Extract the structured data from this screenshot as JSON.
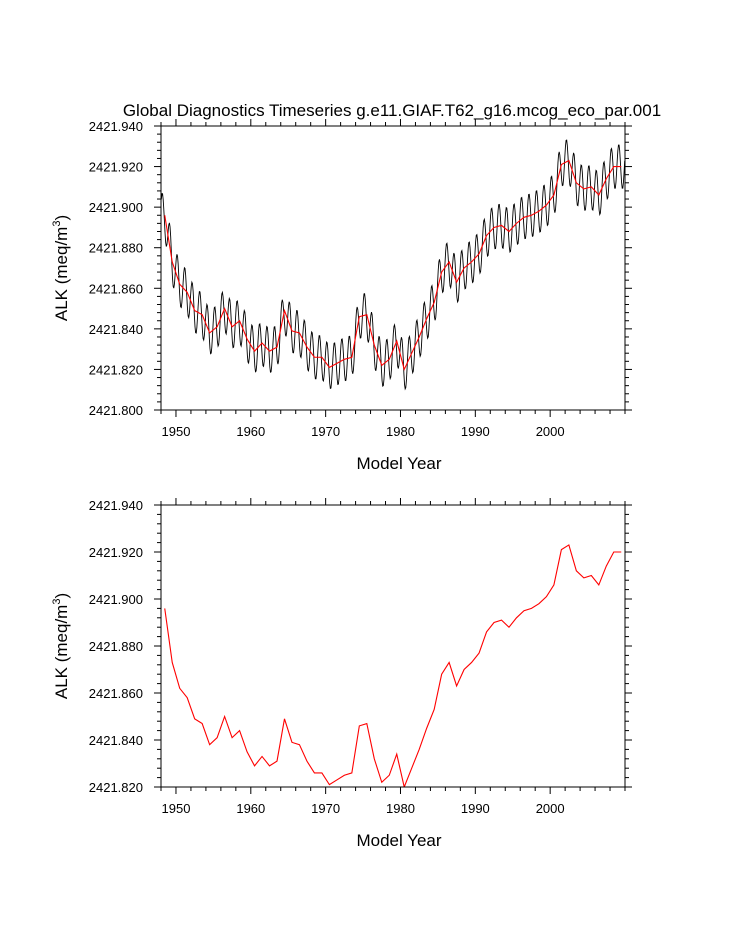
{
  "page_title": "Global Diagnostics Timeseries g.e11.GIAF.T62_g16.mcog_eco_par.001",
  "colors": {
    "monthly": "#000000",
    "annual": "#ff0000",
    "axis": "#000000"
  },
  "chart_data": [
    {
      "type": "line",
      "name": "top",
      "title": "Global Diagnostics Timeseries g.e11.GIAF.T62_g16.mcog_eco_par.001",
      "xlabel": "Model Year",
      "ylabel": "ALK (meq/m",
      "ylabel_sup": "3",
      "ylabel_end": ")",
      "xlim": [
        1948,
        2010
      ],
      "ylim": [
        2421.8,
        2421.94
      ],
      "xticks": [
        1950,
        1960,
        1970,
        1980,
        1990,
        2000
      ],
      "yticks": [
        "2421.800",
        "2421.820",
        "2421.840",
        "2421.860",
        "2421.880",
        "2421.900",
        "2421.920",
        "2421.940"
      ],
      "series": [
        {
          "name": "monthly",
          "color": "#000000",
          "annual_base": [
            2421.896,
            2421.873,
            2421.862,
            2421.858,
            2421.849,
            2421.847,
            2421.838,
            2421.841,
            2421.85,
            2421.841,
            2421.844,
            2421.835,
            2421.829,
            2421.833,
            2421.829,
            2421.831,
            2421.849,
            2421.839,
            2421.838,
            2421.831,
            2421.826,
            2421.826,
            2421.821,
            2421.823,
            2421.825,
            2421.826,
            2421.846,
            2421.847,
            2421.832,
            2421.822,
            2421.825,
            2421.834,
            2421.82,
            2421.828,
            2421.836,
            2421.845,
            2421.853,
            2421.868,
            2421.873,
            2421.863,
            2421.87,
            2421.873,
            2421.877,
            2421.886,
            2421.89,
            2421.891,
            2421.888,
            2421.892,
            2421.895,
            2421.896,
            2421.898,
            2421.901,
            2421.906,
            2421.921,
            2421.923,
            2421.912,
            2421.909,
            2421.91,
            2421.906,
            2421.914,
            2421.92,
            2421.92
          ],
          "seasonal_amplitude": 0.011
        },
        {
          "name": "annual",
          "color": "#ff0000",
          "x": [
            1948.5,
            1949.5,
            1950.5,
            1951.5,
            1952.5,
            1953.5,
            1954.5,
            1955.5,
            1956.5,
            1957.5,
            1958.5,
            1959.5,
            1960.5,
            1961.5,
            1962.5,
            1963.5,
            1964.5,
            1965.5,
            1966.5,
            1967.5,
            1968.5,
            1969.5,
            1970.5,
            1971.5,
            1972.5,
            1973.5,
            1974.5,
            1975.5,
            1976.5,
            1977.5,
            1978.5,
            1979.5,
            1980.5,
            1981.5,
            1982.5,
            1983.5,
            1984.5,
            1985.5,
            1986.5,
            1987.5,
            1988.5,
            1989.5,
            1990.5,
            1991.5,
            1992.5,
            1993.5,
            1994.5,
            1995.5,
            1996.5,
            1997.5,
            1998.5,
            1999.5,
            2000.5,
            2001.5,
            2002.5,
            2003.5,
            2004.5,
            2005.5,
            2006.5,
            2007.5,
            2008.5,
            2009.5
          ],
          "values": [
            2421.896,
            2421.873,
            2421.862,
            2421.858,
            2421.849,
            2421.847,
            2421.838,
            2421.841,
            2421.85,
            2421.841,
            2421.844,
            2421.835,
            2421.829,
            2421.833,
            2421.829,
            2421.831,
            2421.849,
            2421.839,
            2421.838,
            2421.831,
            2421.826,
            2421.826,
            2421.821,
            2421.823,
            2421.825,
            2421.826,
            2421.846,
            2421.847,
            2421.832,
            2421.822,
            2421.825,
            2421.834,
            2421.82,
            2421.828,
            2421.836,
            2421.845,
            2421.853,
            2421.868,
            2421.873,
            2421.863,
            2421.87,
            2421.873,
            2421.877,
            2421.886,
            2421.89,
            2421.891,
            2421.888,
            2421.892,
            2421.895,
            2421.896,
            2421.898,
            2421.901,
            2421.906,
            2421.921,
            2421.923,
            2421.912,
            2421.909,
            2421.91,
            2421.906,
            2421.914,
            2421.92,
            2421.92
          ]
        }
      ]
    },
    {
      "type": "line",
      "name": "bottom",
      "title": "",
      "xlabel": "Model Year",
      "ylabel": "ALK (meq/m",
      "ylabel_sup": "3",
      "ylabel_end": ")",
      "xlim": [
        1948,
        2010
      ],
      "ylim": [
        2421.82,
        2421.94
      ],
      "xticks": [
        1950,
        1960,
        1970,
        1980,
        1990,
        2000
      ],
      "yticks": [
        "2421.820",
        "2421.840",
        "2421.860",
        "2421.880",
        "2421.900",
        "2421.920",
        "2421.940"
      ],
      "series": [
        {
          "name": "annual",
          "color": "#ff0000",
          "x": [
            1948.5,
            1949.5,
            1950.5,
            1951.5,
            1952.5,
            1953.5,
            1954.5,
            1955.5,
            1956.5,
            1957.5,
            1958.5,
            1959.5,
            1960.5,
            1961.5,
            1962.5,
            1963.5,
            1964.5,
            1965.5,
            1966.5,
            1967.5,
            1968.5,
            1969.5,
            1970.5,
            1971.5,
            1972.5,
            1973.5,
            1974.5,
            1975.5,
            1976.5,
            1977.5,
            1978.5,
            1979.5,
            1980.5,
            1981.5,
            1982.5,
            1983.5,
            1984.5,
            1985.5,
            1986.5,
            1987.5,
            1988.5,
            1989.5,
            1990.5,
            1991.5,
            1992.5,
            1993.5,
            1994.5,
            1995.5,
            1996.5,
            1997.5,
            1998.5,
            1999.5,
            2000.5,
            2001.5,
            2002.5,
            2003.5,
            2004.5,
            2005.5,
            2006.5,
            2007.5,
            2008.5,
            2009.5
          ],
          "values": [
            2421.896,
            2421.873,
            2421.862,
            2421.858,
            2421.849,
            2421.847,
            2421.838,
            2421.841,
            2421.85,
            2421.841,
            2421.844,
            2421.835,
            2421.829,
            2421.833,
            2421.829,
            2421.831,
            2421.849,
            2421.839,
            2421.838,
            2421.831,
            2421.826,
            2421.826,
            2421.821,
            2421.823,
            2421.825,
            2421.826,
            2421.846,
            2421.847,
            2421.832,
            2421.822,
            2421.825,
            2421.834,
            2421.82,
            2421.828,
            2421.836,
            2421.845,
            2421.853,
            2421.868,
            2421.873,
            2421.863,
            2421.87,
            2421.873,
            2421.877,
            2421.886,
            2421.89,
            2421.891,
            2421.888,
            2421.892,
            2421.895,
            2421.896,
            2421.898,
            2421.901,
            2421.906,
            2421.921,
            2421.923,
            2421.912,
            2421.909,
            2421.91,
            2421.906,
            2421.914,
            2421.92,
            2421.92
          ]
        }
      ]
    }
  ]
}
